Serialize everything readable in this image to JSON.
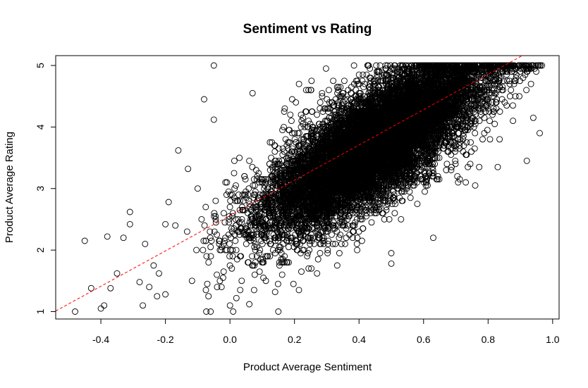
{
  "chart_data": {
    "type": "scatter",
    "title": "Sentiment vs Rating",
    "xlabel": "Product Average Sentiment",
    "ylabel": "Product Average Rating",
    "xlim": [
      -0.54,
      1.02
    ],
    "ylim": [
      0.88,
      5.16
    ],
    "x_ticks": [
      -0.4,
      -0.2,
      0.0,
      0.2,
      0.4,
      0.6,
      0.8,
      1.0
    ],
    "x_tick_labels": [
      "-0.4",
      "-0.2",
      "0.0",
      "0.2",
      "0.4",
      "0.6",
      "0.8",
      "1.0"
    ],
    "y_ticks": [
      1,
      2,
      3,
      4,
      5
    ],
    "y_tick_labels": [
      "1",
      "2",
      "3",
      "4",
      "5"
    ],
    "grid": false,
    "marker": "open-circle",
    "marker_color": "#000000",
    "point_count_approx": 12000,
    "points_sample": [
      [
        -0.48,
        1.0
      ],
      [
        -0.45,
        2.15
      ],
      [
        -0.43,
        1.38
      ],
      [
        -0.4,
        1.05
      ],
      [
        -0.39,
        1.1
      ],
      [
        -0.38,
        2.22
      ],
      [
        -0.37,
        1.38
      ],
      [
        -0.35,
        1.62
      ],
      [
        -0.33,
        2.2
      ],
      [
        -0.31,
        2.62
      ],
      [
        -0.31,
        2.42
      ],
      [
        -0.28,
        1.48
      ],
      [
        -0.27,
        1.1
      ],
      [
        -0.25,
        1.4
      ],
      [
        -0.22,
        1.62
      ],
      [
        -0.2,
        2.42
      ],
      [
        -0.2,
        1.28
      ],
      [
        -0.19,
        2.78
      ],
      [
        -0.16,
        3.62
      ],
      [
        -0.13,
        3.32
      ],
      [
        -0.1,
        3.0
      ],
      [
        -0.08,
        4.45
      ],
      [
        -0.06,
        1.0
      ],
      [
        -0.05,
        5.0
      ],
      [
        -0.05,
        4.12
      ],
      [
        0.0,
        1.1
      ],
      [
        0.01,
        1.0
      ],
      [
        0.02,
        1.22
      ],
      [
        0.06,
        1.12
      ],
      [
        0.07,
        4.55
      ],
      [
        0.14,
        1.32
      ],
      [
        0.15,
        1.0
      ],
      [
        0.27,
        1.62
      ],
      [
        0.5,
        1.95
      ],
      [
        0.5,
        1.78
      ],
      [
        0.63,
        2.2
      ],
      [
        0.76,
        3.05
      ],
      [
        0.83,
        3.35
      ],
      [
        0.92,
        3.45
      ],
      [
        0.94,
        4.15
      ],
      [
        0.96,
        3.9
      ],
      [
        0.92,
        4.9
      ]
    ],
    "trend_line": {
      "style": "dashed",
      "color": "#ff0000",
      "intercept": 2.56,
      "slope": 2.87
    }
  }
}
